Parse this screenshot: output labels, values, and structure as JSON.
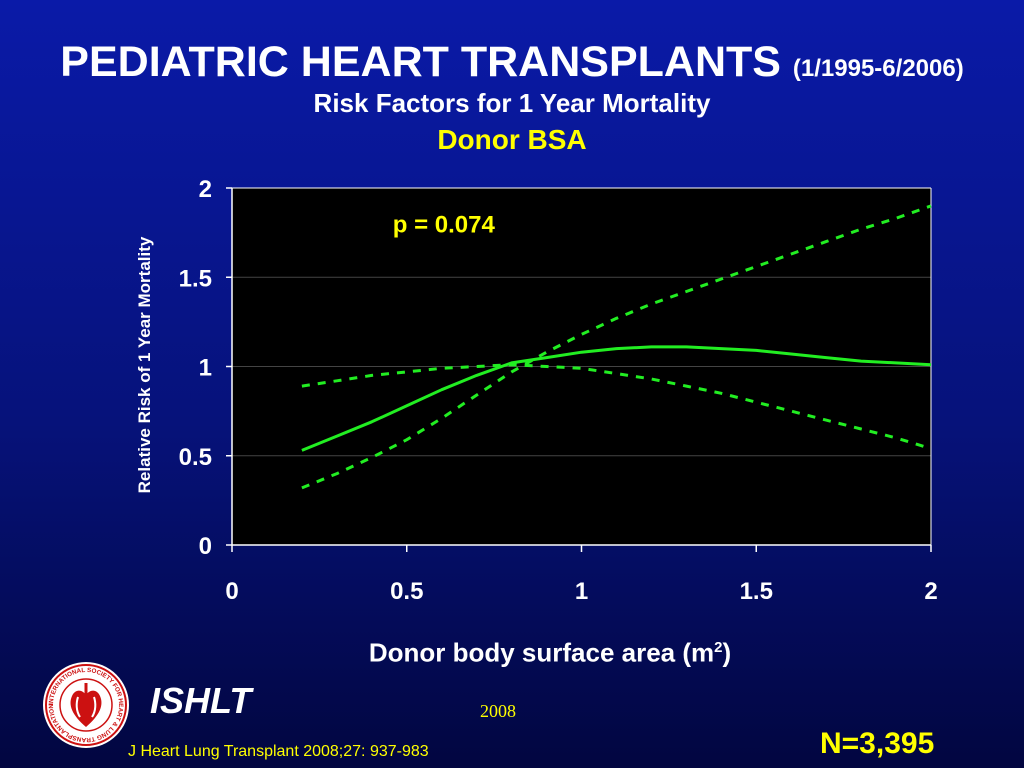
{
  "header": {
    "title": "PEDIATRIC HEART TRANSPLANTS",
    "period": "(1/1995-6/2006)",
    "subtitle": "Risk Factors for 1 Year Mortality",
    "subtitle2": "Donor BSA"
  },
  "chart_data": {
    "type": "line",
    "xlabel_text": "Donor body surface area (m",
    "xlabel_sup": "2",
    "xlabel_close": ")",
    "ylabel": "Relative Risk of 1 Year Mortality",
    "xlim": [
      0,
      2
    ],
    "ylim": [
      0,
      2
    ],
    "x_ticks": [
      "0",
      "0.5",
      "1",
      "1.5",
      "2"
    ],
    "y_ticks": [
      "0",
      "0.5",
      "1",
      "1.5",
      "2"
    ],
    "annotation": "p = 0.074",
    "grid": "horizontal",
    "series": [
      {
        "style": "solid",
        "color": "#22ee22",
        "points": [
          [
            0.2,
            0.53
          ],
          [
            0.3,
            0.61
          ],
          [
            0.4,
            0.69
          ],
          [
            0.5,
            0.78
          ],
          [
            0.6,
            0.87
          ],
          [
            0.7,
            0.95
          ],
          [
            0.8,
            1.02
          ],
          [
            0.9,
            1.05
          ],
          [
            1.0,
            1.08
          ],
          [
            1.1,
            1.1
          ],
          [
            1.2,
            1.11
          ],
          [
            1.3,
            1.11
          ],
          [
            1.4,
            1.1
          ],
          [
            1.5,
            1.09
          ],
          [
            1.6,
            1.07
          ],
          [
            1.7,
            1.05
          ],
          [
            1.8,
            1.03
          ],
          [
            1.9,
            1.02
          ],
          [
            2.0,
            1.01
          ]
        ]
      },
      {
        "style": "dashed",
        "color": "#22ee22",
        "points": [
          [
            0.2,
            0.89
          ],
          [
            0.3,
            0.92
          ],
          [
            0.4,
            0.95
          ],
          [
            0.5,
            0.97
          ],
          [
            0.6,
            0.99
          ],
          [
            0.7,
            1.0
          ],
          [
            0.8,
            1.01
          ],
          [
            0.9,
            1.0
          ],
          [
            1.0,
            0.99
          ],
          [
            1.1,
            0.96
          ],
          [
            1.2,
            0.93
          ],
          [
            1.3,
            0.89
          ],
          [
            1.4,
            0.85
          ],
          [
            1.5,
            0.8
          ],
          [
            1.6,
            0.75
          ],
          [
            1.7,
            0.7
          ],
          [
            1.8,
            0.65
          ],
          [
            1.9,
            0.6
          ],
          [
            2.0,
            0.54
          ]
        ]
      },
      {
        "style": "dashed",
        "color": "#22ee22",
        "points": [
          [
            0.2,
            0.32
          ],
          [
            0.3,
            0.4
          ],
          [
            0.4,
            0.49
          ],
          [
            0.5,
            0.59
          ],
          [
            0.6,
            0.71
          ],
          [
            0.7,
            0.84
          ],
          [
            0.8,
            0.97
          ],
          [
            0.9,
            1.08
          ],
          [
            1.0,
            1.18
          ],
          [
            1.1,
            1.27
          ],
          [
            1.2,
            1.35
          ],
          [
            1.3,
            1.42
          ],
          [
            1.4,
            1.49
          ],
          [
            1.5,
            1.56
          ],
          [
            1.6,
            1.63
          ],
          [
            1.7,
            1.7
          ],
          [
            1.8,
            1.77
          ],
          [
            1.9,
            1.83
          ],
          [
            2.0,
            1.9
          ]
        ]
      }
    ]
  },
  "footer": {
    "brand": "ISHLT",
    "year": "2008",
    "n": "N=3,395",
    "citation": "J Heart Lung Transplant 2008;27: 937-983",
    "logo_ring_text": "INTERNATIONAL SOCIETY FOR HEART & LUNG TRANSPLANTATION"
  }
}
